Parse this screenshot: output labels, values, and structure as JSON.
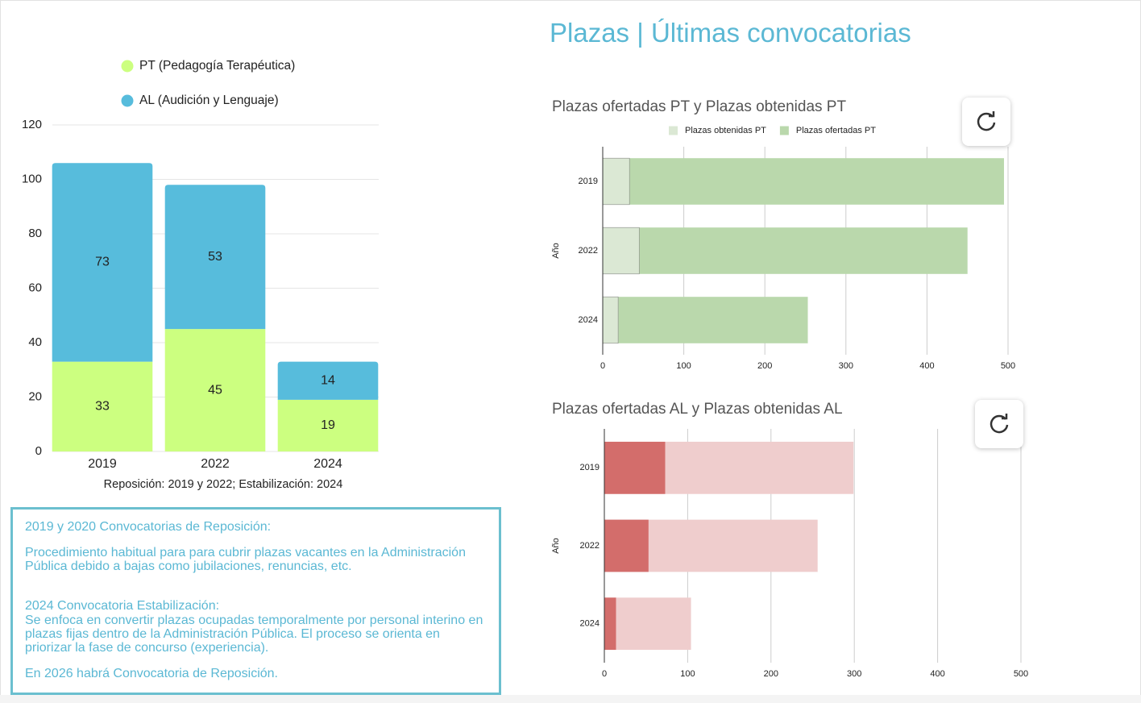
{
  "header": {
    "title": "Plazas | Últimas convocatorias"
  },
  "note": {
    "paragraphs": [
      "2019 y 2020 Convocatorias de Reposición:",
      "Procedimiento habitual para para cubrir plazas vacantes en la Administración Pública debido a bajas como jubilaciones, renuncias, etc.",
      "2024 Convocatoria Estabilización:",
      "Se enfoca en convertir plazas ocupadas temporalmente por personal interino en plazas fijas dentro de la Administración Pública. El proceso se orienta en priorizar la fase de concurso (experiencia).",
      "En 2026 habrá Convocatoria de Reposición."
    ]
  },
  "chart_data": [
    {
      "type": "bar",
      "orientation": "vertical",
      "stacked": true,
      "grid": true,
      "legend": "top-left",
      "xlabel": "Reposición: 2019 y 2022; Estabilización: 2024",
      "categories": [
        "2019",
        "2022",
        "2024"
      ],
      "series": [
        {
          "name": "PT (Pedagogía Terapéutica)",
          "color": "#ccff80",
          "values": [
            33,
            45,
            19
          ]
        },
        {
          "name": "AL (Audición y Lenguaje)",
          "color": "#57bcdc",
          "values": [
            73,
            53,
            14
          ]
        }
      ],
      "ylim": [
        0,
        120
      ],
      "yticks": [
        0,
        20,
        40,
        60,
        80,
        100,
        120
      ]
    },
    {
      "type": "bar",
      "orientation": "horizontal",
      "stacked": false,
      "grid": true,
      "legend": "top",
      "title": "Plazas ofertadas PT y Plazas obtenidas PT",
      "ylabel": "Año",
      "categories": [
        "2019",
        "2022",
        "2024"
      ],
      "series": [
        {
          "name": "Plazas obtenidas PT",
          "color": "#dbe8d4",
          "values": [
            33,
            45,
            19
          ]
        },
        {
          "name": "Plazas ofertadas PT",
          "color": "#bad8ac",
          "values": [
            495,
            450,
            253
          ]
        }
      ],
      "xlim": [
        0,
        500
      ],
      "xticks": [
        0,
        100,
        200,
        300,
        400,
        500
      ]
    },
    {
      "type": "bar",
      "orientation": "horizontal",
      "stacked": false,
      "grid": true,
      "title": "Plazas ofertadas AL y Plazas obtenidas AL",
      "ylabel": "Año",
      "categories": [
        "2019",
        "2022",
        "2024"
      ],
      "series": [
        {
          "color": "#d36d6b",
          "values": [
            73,
            53,
            14
          ]
        },
        {
          "color": "#efcdcd",
          "values": [
            299,
            256,
            104
          ]
        }
      ],
      "xlim": [
        0,
        500
      ],
      "xticks": [
        0,
        100,
        200,
        300,
        400,
        500
      ]
    }
  ]
}
